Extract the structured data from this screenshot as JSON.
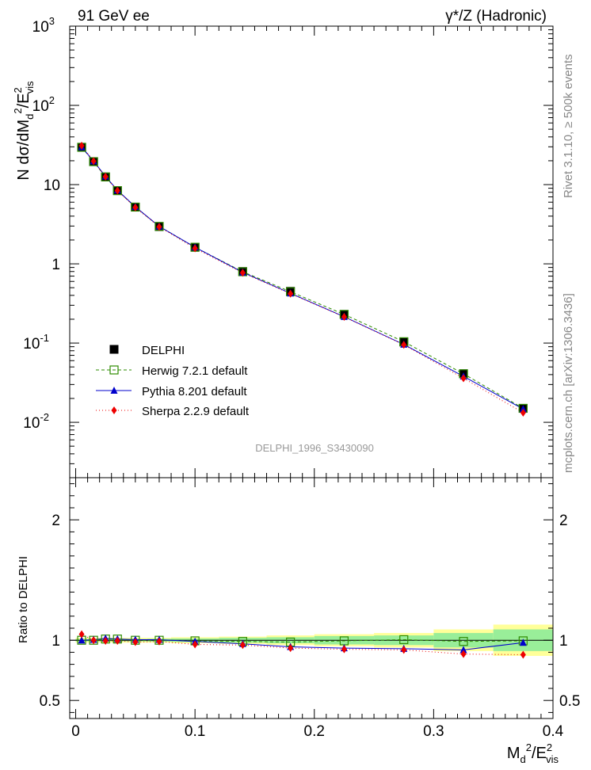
{
  "header": {
    "left": "91 GeV ee",
    "right": "γ*/Z (Hadronic)"
  },
  "side_labels": {
    "rivet": "Rivet 3.1.10, ≥ 500k events",
    "mcplots": "mcplots.cern.ch [arXiv:1306.3436]"
  },
  "watermark": "DELPHI_1996_S3430090",
  "colors": {
    "data": "#000000",
    "herwig": "#2e8b00",
    "pythia": "#0000cc",
    "sherpa": "#ee0000",
    "band_yellow": "#ffff99",
    "band_green": "#99ee99"
  },
  "chart_data": [
    {
      "type": "scatter",
      "panel": "main",
      "yscale": "log",
      "ylabel": "N dσ/dM_d^2/E_vis^2",
      "ylim": [
        0.002,
        1000
      ],
      "xlim": [
        -0.005,
        0.4
      ],
      "yticks": [
        "10^-2",
        "10^-1",
        "1",
        "10",
        "10^2",
        "10^3"
      ],
      "legend_position": "lower-left",
      "x": [
        0.005,
        0.015,
        0.025,
        0.035,
        0.05,
        0.07,
        0.1,
        0.14,
        0.18,
        0.225,
        0.275,
        0.325,
        0.375
      ],
      "series": [
        {
          "name": "DELPHI",
          "marker": "filled-square",
          "values": [
            29.5,
            19.5,
            12.5,
            8.4,
            5.2,
            2.95,
            1.62,
            0.8,
            0.45,
            0.23,
            0.103,
            0.041,
            0.015
          ]
        },
        {
          "name": "Herwig 7.2.1 default",
          "marker": "open-square",
          "line": "dashed",
          "values": [
            29.6,
            19.5,
            12.5,
            8.4,
            5.2,
            2.97,
            1.62,
            0.795,
            0.445,
            0.23,
            0.104,
            0.041,
            0.015
          ]
        },
        {
          "name": "Pythia 8.201 default",
          "marker": "triangle",
          "line": "solid",
          "values": [
            29.8,
            19.8,
            12.7,
            8.5,
            5.25,
            2.97,
            1.62,
            0.78,
            0.425,
            0.215,
            0.096,
            0.038,
            0.0147
          ]
        },
        {
          "name": "Sherpa 2.2.9 default",
          "marker": "diamond",
          "line": "dotted",
          "values": [
            31.0,
            19.8,
            12.6,
            8.4,
            5.15,
            2.93,
            1.57,
            0.77,
            0.42,
            0.214,
            0.095,
            0.036,
            0.0132
          ]
        }
      ]
    },
    {
      "type": "line",
      "panel": "ratio",
      "ylabel": "Ratio to DELPHI",
      "xlabel": "M_d^2/E_vis^2",
      "ylim": [
        0.35,
        2.35
      ],
      "xlim": [
        -0.005,
        0.4
      ],
      "yticks": [
        "0.5",
        "1",
        "2"
      ],
      "xticks": [
        "0",
        "0.1",
        "0.2",
        "0.3",
        "0.4"
      ],
      "bins": [
        0.0,
        0.01,
        0.02,
        0.03,
        0.04,
        0.06,
        0.08,
        0.12,
        0.16,
        0.2,
        0.25,
        0.3,
        0.35,
        0.4
      ],
      "band_yellow_halfwidth": [
        0.02,
        0.02,
        0.02,
        0.02,
        0.02,
        0.02,
        0.025,
        0.03,
        0.04,
        0.05,
        0.06,
        0.09,
        0.13
      ],
      "band_green_halfwidth": [
        0.01,
        0.01,
        0.01,
        0.01,
        0.01,
        0.012,
        0.015,
        0.02,
        0.025,
        0.035,
        0.04,
        0.06,
        0.09
      ],
      "x": [
        0.005,
        0.015,
        0.025,
        0.035,
        0.05,
        0.07,
        0.1,
        0.14,
        0.18,
        0.225,
        0.275,
        0.325,
        0.375
      ],
      "series": [
        {
          "name": "Herwig 7.2.1 default",
          "values": [
            1.0,
            1.0,
            1.01,
            1.01,
            1.0,
            1.0,
            0.995,
            0.99,
            0.985,
            0.995,
            1.005,
            0.99,
            0.995
          ]
        },
        {
          "name": "Pythia 8.201 default",
          "values": [
            1.0,
            1.005,
            1.015,
            1.01,
            1.005,
            1.005,
            0.99,
            0.97,
            0.945,
            0.935,
            0.93,
            0.92,
            0.98
          ]
        },
        {
          "name": "Sherpa 2.2.9 default",
          "values": [
            1.05,
            1.0,
            0.995,
            0.995,
            0.985,
            0.99,
            0.965,
            0.96,
            0.935,
            0.925,
            0.92,
            0.885,
            0.88
          ]
        }
      ]
    }
  ]
}
